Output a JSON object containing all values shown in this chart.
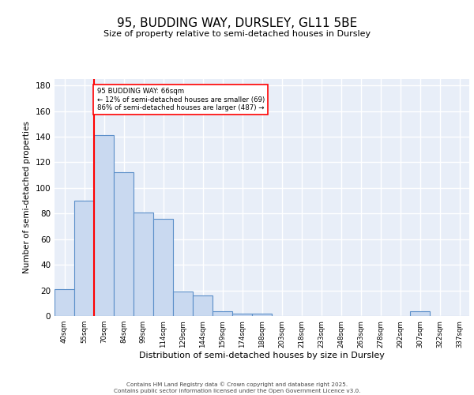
{
  "title": "95, BUDDING WAY, DURSLEY, GL11 5BE",
  "subtitle": "Size of property relative to semi-detached houses in Dursley",
  "xlabel": "Distribution of semi-detached houses by size in Dursley",
  "ylabel": "Number of semi-detached properties",
  "categories": [
    "40sqm",
    "55sqm",
    "70sqm",
    "84sqm",
    "99sqm",
    "114sqm",
    "129sqm",
    "144sqm",
    "159sqm",
    "174sqm",
    "188sqm",
    "203sqm",
    "218sqm",
    "233sqm",
    "248sqm",
    "263sqm",
    "278sqm",
    "292sqm",
    "307sqm",
    "322sqm",
    "337sqm"
  ],
  "values": [
    21,
    90,
    141,
    112,
    81,
    76,
    19,
    16,
    4,
    2,
    2,
    0,
    0,
    0,
    0,
    0,
    0,
    0,
    4,
    0,
    0
  ],
  "bar_color": "#c9d9f0",
  "bar_edge_color": "#5b8fc9",
  "background_color": "#e8eef8",
  "grid_color": "#ffffff",
  "property_line_x": 1.5,
  "property_label": "95 BUDDING WAY: 66sqm",
  "smaller_pct": "12%",
  "smaller_n": 69,
  "larger_pct": "86%",
  "larger_n": 487,
  "ylim": [
    0,
    185
  ],
  "yticks": [
    0,
    20,
    40,
    60,
    80,
    100,
    120,
    140,
    160,
    180
  ],
  "footer_line1": "Contains HM Land Registry data © Crown copyright and database right 2025.",
  "footer_line2": "Contains public sector information licensed under the Open Government Licence v3.0."
}
